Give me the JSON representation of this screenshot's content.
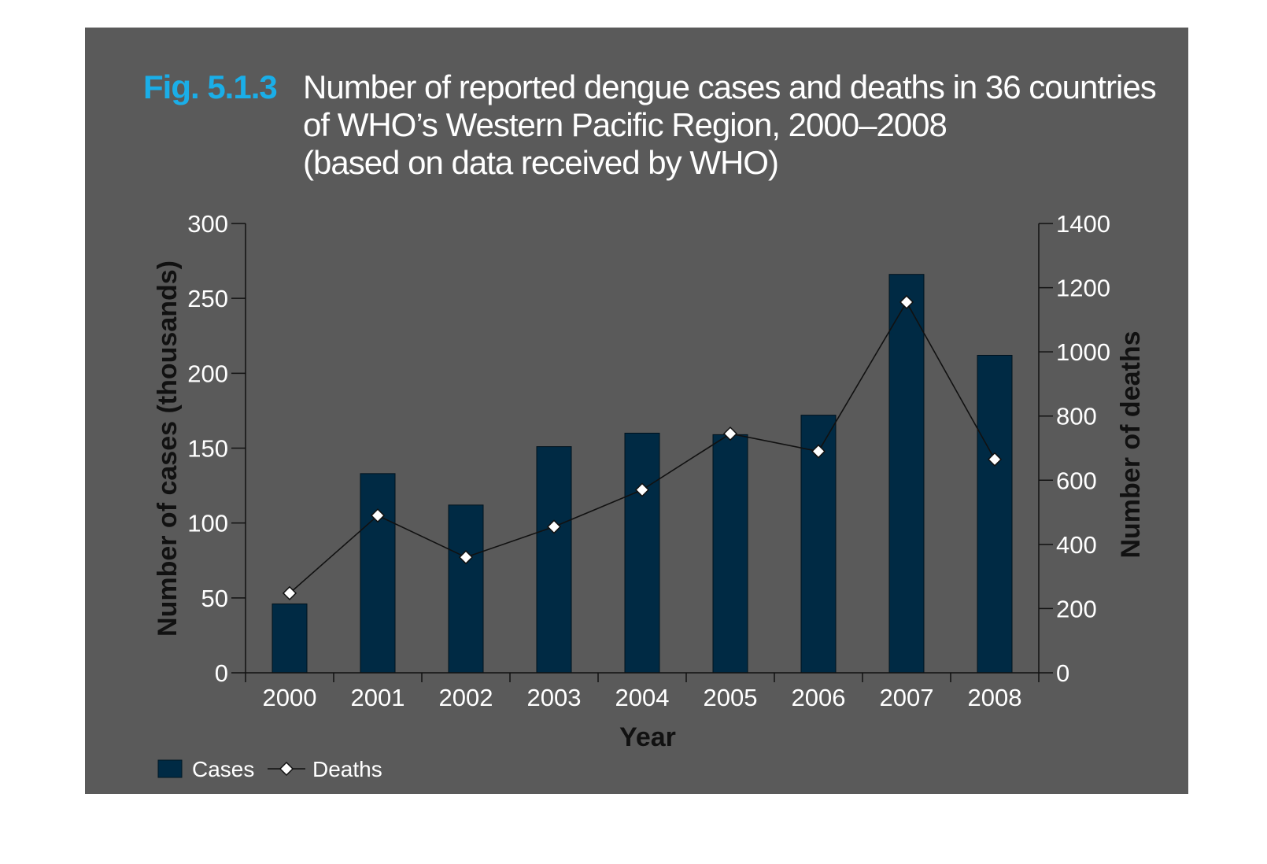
{
  "figure": {
    "label": "Fig. 5.1.3",
    "title_lines": [
      "Number of reported dengue cases and deaths in 36 countries",
      "of WHO’s Western Pacific Region, 2000–2008",
      "(based on data received by WHO)"
    ]
  },
  "colors": {
    "panel_background": "#5a5a5a",
    "bar_fill": "#002a44",
    "line_stroke": "#111111",
    "marker_fill": "#ffffff",
    "accent": "#1aaee8"
  },
  "chart_data": {
    "type": "bar",
    "categories": [
      "2000",
      "2001",
      "2002",
      "2003",
      "2004",
      "2005",
      "2006",
      "2007",
      "2008"
    ],
    "xlabel": "Year",
    "ylabel_left": "Number of cases (thousands)",
    "ylabel_right": "Number of deaths",
    "ylim_left": [
      0,
      300
    ],
    "ylim_right": [
      0,
      1400
    ],
    "yticks_left": [
      "0",
      "50",
      "100",
      "150",
      "200",
      "250",
      "300"
    ],
    "yticks_right": [
      "0",
      "200",
      "400",
      "600",
      "800",
      "1000",
      "1200",
      "1400"
    ],
    "series": [
      {
        "name": "Cases",
        "type": "bar",
        "axis": "left",
        "values": [
          46,
          133,
          112,
          151,
          160,
          159,
          172,
          266,
          212
        ]
      },
      {
        "name": "Deaths",
        "type": "line",
        "axis": "right",
        "marker": "diamond",
        "values": [
          248,
          490,
          360,
          455,
          570,
          745,
          690,
          1155,
          665
        ]
      }
    ],
    "legend": {
      "placement": "bottom-left",
      "entries": [
        "Cases",
        "Deaths"
      ]
    },
    "grid": false
  }
}
